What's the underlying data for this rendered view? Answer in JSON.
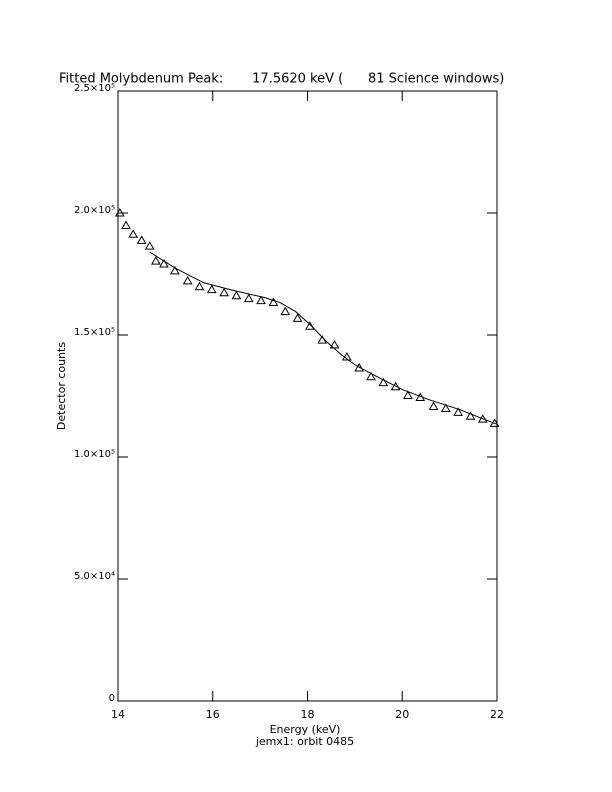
{
  "chart_data": {
    "type": "scatter",
    "title": "Fitted Molybdenum Peak:       17.5620 keV (      81 Science windows)",
    "xlabel": "Energy (keV)",
    "ylabel": "Detector counts",
    "subtitle": "jemx1: orbit 0485",
    "xlim": [
      14,
      22
    ],
    "xticks": [
      14,
      16,
      18,
      20,
      22
    ],
    "ylim": [
      0,
      250000
    ],
    "yticks": [
      0,
      {
        "value": 50000,
        "label": "5.0×10⁴"
      },
      {
        "value": 100000,
        "label": "1.0×10⁵"
      },
      {
        "value": 150000,
        "label": "1.5×10⁵"
      },
      {
        "value": 200000,
        "label": "2.0×10⁵"
      },
      {
        "value": 250000,
        "label": "2.5×10⁵"
      }
    ],
    "series": [
      {
        "color": "#000000",
        "marker": "triangle",
        "x": [
          14.04,
          14.17,
          14.32,
          14.5,
          14.67,
          14.8,
          14.97,
          15.2,
          15.47,
          15.72,
          15.98,
          16.24,
          16.5,
          16.76,
          17.02,
          17.28,
          17.53,
          17.79,
          18.05,
          18.31,
          18.57,
          18.83,
          19.09,
          19.34,
          19.6,
          19.86,
          20.12,
          20.38,
          20.66,
          20.92,
          21.18,
          21.44,
          21.7,
          21.95
        ],
        "values": [
          200000,
          194900,
          191300,
          188800,
          186400,
          180300,
          179100,
          176300,
          172200,
          169800,
          168600,
          167300,
          166100,
          164900,
          164100,
          163300,
          159600,
          156800,
          153600,
          147900,
          145900,
          141000,
          136500,
          132900,
          130500,
          128800,
          125200,
          124400,
          120700,
          119900,
          118300,
          116700,
          115500,
          113800
        ]
      },
      {
        "color": "#000000",
        "marker": "line",
        "x": [
          14.67,
          15.2,
          15.81,
          16.45,
          17.1,
          17.42,
          17.75,
          18.07,
          18.39,
          18.72,
          19.04,
          19.47,
          20.01,
          20.55,
          21.2,
          22
        ],
        "values": [
          184000,
          177500,
          171400,
          168200,
          165300,
          163300,
          159600,
          154000,
          147500,
          141800,
          137300,
          132900,
          127600,
          123600,
          119500,
          113400
        ]
      }
    ]
  }
}
